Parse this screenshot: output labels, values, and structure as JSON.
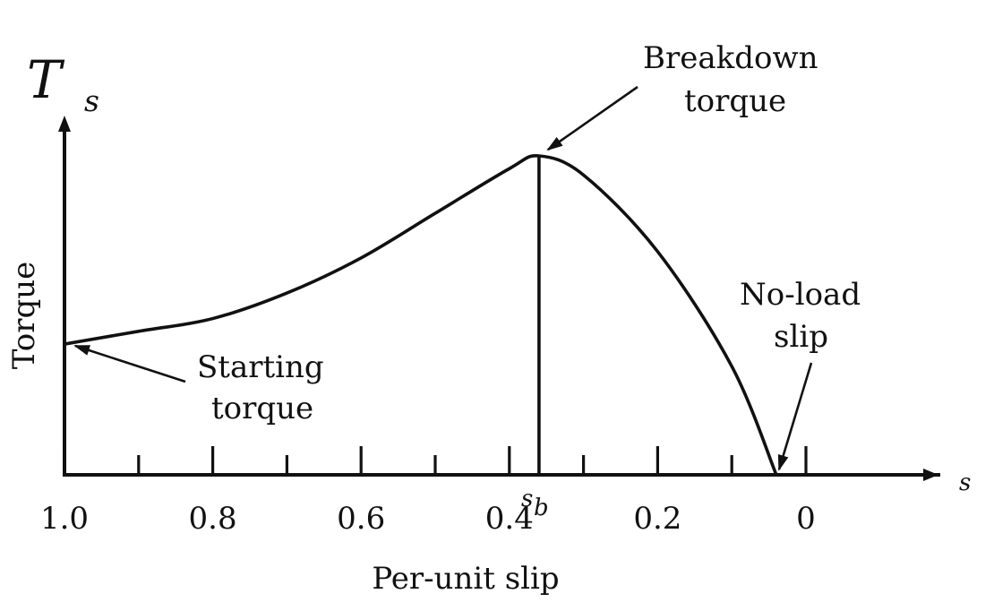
{
  "chart_data": {
    "type": "line",
    "title": "",
    "xlabel": "Per-unit slip",
    "ylabel": "Torque",
    "x_axis_symbol": "s",
    "y_axis_symbol": {
      "main": "T",
      "sub": "s"
    },
    "xlim": [
      1.0,
      0.0
    ],
    "x_ticks": [
      1.0,
      0.9,
      0.8,
      0.7,
      0.6,
      0.5,
      0.4,
      0.3,
      0.2,
      0.1,
      0.0
    ],
    "x_tick_labels": [
      "1.0",
      "0.8",
      "0.6",
      "0.4",
      "0.2",
      "0"
    ],
    "breakdown_slip": {
      "x": 0.36,
      "label_main": "s",
      "label_sub": "b"
    },
    "series": [
      {
        "name": "",
        "x": [
          1.0,
          0.9,
          0.8,
          0.7,
          0.6,
          0.5,
          0.4,
          0.36,
          0.3,
          0.2,
          0.1,
          0.04
        ],
        "y": [
          0.41,
          0.45,
          0.49,
          0.57,
          0.68,
          0.82,
          0.96,
          1.0,
          0.94,
          0.7,
          0.34,
          0.0
        ]
      }
    ],
    "annotations": [
      {
        "id": "starting-torque",
        "lines": [
          "Starting",
          "torque"
        ],
        "x": 1.0,
        "y": 0.41
      },
      {
        "id": "breakdown-torque",
        "lines": [
          "Breakdown",
          "torque"
        ],
        "x": 0.36,
        "y": 1.0
      },
      {
        "id": "no-load-slip",
        "lines": [
          "No-load",
          "slip"
        ],
        "x": 0.04,
        "y": 0.0
      }
    ]
  },
  "colors": {
    "ink": "#111111",
    "background": "#ffffff"
  }
}
